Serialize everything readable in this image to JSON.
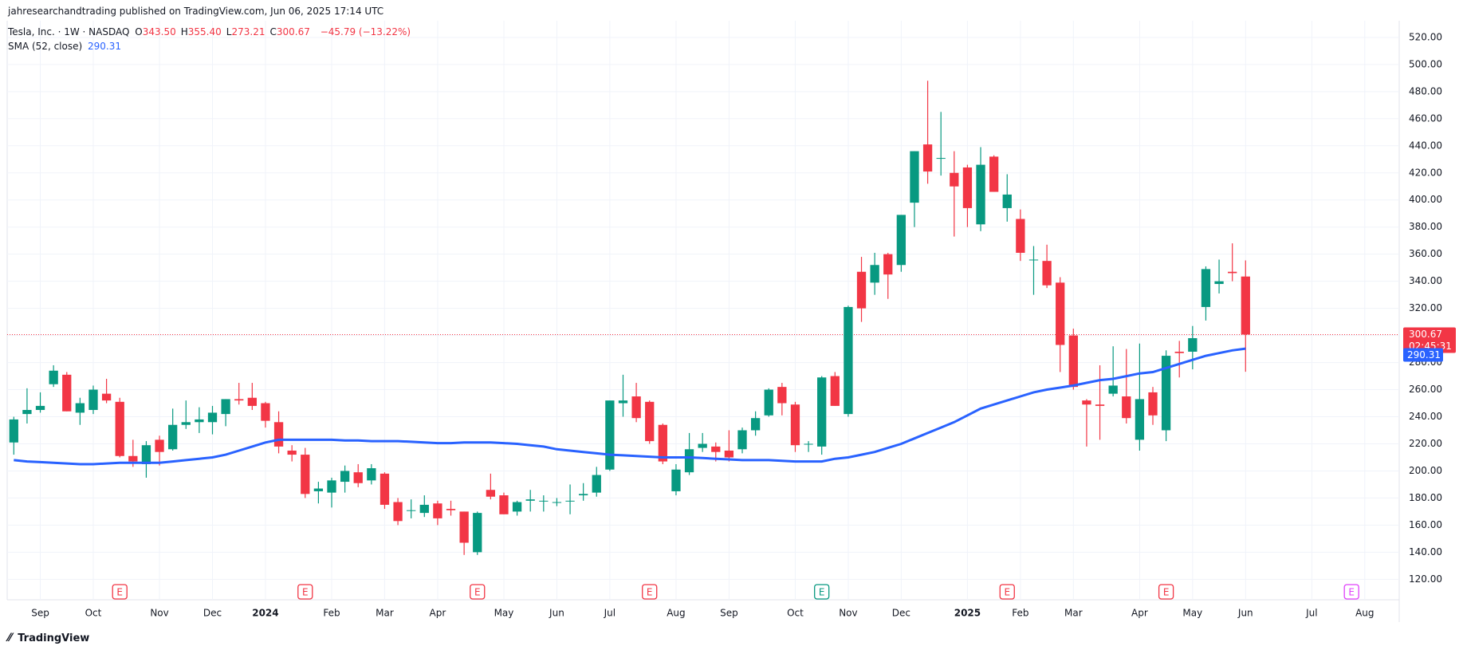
{
  "header": {
    "published": "jahresearchandtrading published on TradingView.com, Jun 06, 2025 17:14 UTC",
    "symbol": "Tesla, Inc. · 1W · NASDAQ",
    "ohlc": [
      {
        "key": "O",
        "value": "343.50"
      },
      {
        "key": "H",
        "value": "355.40"
      },
      {
        "key": "L",
        "value": "273.21"
      },
      {
        "key": "C",
        "value": "300.67"
      }
    ],
    "change": "−45.79 (−13.22%)"
  },
  "footer": "TradingView",
  "chart_data": {
    "type": "candlestick",
    "open": [
      221,
      242,
      245,
      264,
      271,
      243,
      245,
      257,
      251,
      211,
      205,
      223,
      216,
      234,
      236,
      236,
      242,
      253,
      254,
      250,
      236,
      215,
      212,
      185,
      184,
      192,
      199,
      193,
      198,
      177,
      171,
      169,
      176,
      172,
      170,
      140,
      186,
      182,
      170,
      178,
      178,
      177,
      178,
      182,
      184,
      201,
      250,
      255,
      251,
      234,
      185,
      199,
      217,
      218,
      215,
      216,
      230,
      241,
      262,
      249,
      220,
      218,
      270,
      242,
      347,
      339,
      360,
      352,
      398,
      441,
      431,
      420,
      424,
      382,
      432,
      394,
      386,
      356,
      355,
      339,
      300,
      252,
      249,
      257,
      255,
      223,
      258,
      230,
      288,
      288,
      321,
      338,
      347,
      343.5
    ],
    "high": [
      240,
      261,
      258,
      278,
      273,
      254,
      263,
      268,
      254,
      223,
      222,
      226,
      246,
      252,
      247,
      248,
      253,
      265,
      265,
      251,
      244,
      219,
      217,
      192,
      195,
      204,
      205,
      205,
      199,
      180,
      179,
      182,
      178,
      178,
      170,
      170,
      198,
      184,
      178,
      186,
      182,
      180,
      190,
      191,
      203,
      252,
      271,
      265,
      252,
      235,
      205,
      228,
      228,
      221,
      230,
      232,
      244,
      261,
      265,
      251,
      222,
      270,
      273,
      322,
      358,
      361,
      361,
      389,
      436,
      488,
      465,
      436,
      426,
      439,
      433,
      419,
      393,
      366,
      367,
      343,
      305,
      253,
      278,
      292,
      290,
      294,
      262,
      289,
      296,
      307,
      351,
      356,
      368,
      355.4
    ],
    "low": [
      212,
      235,
      243,
      262,
      244,
      234,
      242,
      250,
      210,
      203,
      195,
      204,
      215,
      231,
      228,
      227,
      233,
      249,
      245,
      232,
      213,
      207,
      180,
      176,
      173,
      184,
      188,
      190,
      172,
      160,
      165,
      166,
      160,
      167,
      138,
      138,
      179,
      168,
      167,
      170,
      170,
      174,
      168,
      178,
      181,
      200,
      240,
      236,
      220,
      205,
      182,
      197,
      214,
      207,
      207,
      213,
      226,
      240,
      241,
      214,
      214,
      212,
      248,
      240,
      310,
      330,
      327,
      347,
      380,
      412,
      418,
      373,
      380,
      377,
      406,
      384,
      355,
      330,
      335,
      273,
      260,
      218,
      223,
      255,
      235,
      215,
      234,
      222,
      269,
      275,
      311,
      331,
      340,
      273.21
    ],
    "close": [
      238,
      245,
      248,
      274,
      244,
      250,
      260,
      252,
      211,
      207,
      219,
      214,
      234,
      236,
      238,
      243,
      253,
      252,
      248,
      237,
      218,
      212,
      183,
      187,
      193,
      200,
      191,
      202,
      175,
      163,
      171,
      175,
      165,
      171,
      147,
      169,
      181,
      168,
      177,
      179,
      178,
      177,
      178,
      183,
      197,
      252,
      252,
      239,
      222,
      207,
      201,
      216,
      220,
      214,
      210,
      230,
      239,
      260,
      250,
      219,
      220,
      269,
      248,
      321,
      320,
      352,
      345,
      389,
      436,
      421,
      431,
      410,
      394,
      426,
      406,
      404,
      361,
      356,
      337,
      293,
      262,
      249,
      248,
      263,
      239,
      253,
      241,
      285,
      287,
      298,
      349,
      340,
      346,
      300.67
    ],
    "up_color": "#089981",
    "down_color": "#f23645",
    "sma": {
      "name": "SMA (52, close)",
      "color": "#2962ff",
      "values": [
        208,
        207,
        206.5,
        206,
        205.5,
        205,
        205,
        205.5,
        206,
        206,
        206,
        206,
        207,
        208,
        209,
        210,
        212,
        215,
        218,
        221,
        223,
        223,
        223,
        223,
        223,
        222.5,
        222.5,
        222,
        222,
        222,
        221.5,
        221,
        220.5,
        220.5,
        221,
        221,
        221,
        220.5,
        220,
        219,
        218,
        216,
        215,
        214,
        213,
        212,
        211.5,
        211,
        210.5,
        210,
        210,
        210,
        209.5,
        209,
        208.5,
        208,
        208,
        208,
        207.5,
        207,
        207,
        207,
        209,
        210,
        212,
        214,
        217,
        220,
        224,
        228,
        232,
        236,
        241,
        246,
        249,
        252,
        255,
        258,
        260,
        261.5,
        263,
        265,
        267,
        268,
        270,
        272,
        273,
        276,
        279,
        282,
        285,
        287,
        289,
        290.31
      ]
    },
    "last_price_label": {
      "value": 300.67,
      "label": "300.67"
    },
    "countdown": "02:45:31",
    "sma_label": {
      "value": 290.31,
      "label": "290.31"
    },
    "xlim": [
      -0.5,
      104.6
    ],
    "xticks": [
      {
        "value": 2,
        "label": "Sep"
      },
      {
        "value": 6,
        "label": "Oct"
      },
      {
        "value": 11,
        "label": "Nov"
      },
      {
        "value": 15,
        "label": "Dec"
      },
      {
        "value": 19,
        "label": "2024",
        "bold": true
      },
      {
        "value": 24,
        "label": "Feb"
      },
      {
        "value": 28,
        "label": "Mar"
      },
      {
        "value": 32,
        "label": "Apr"
      },
      {
        "value": 37,
        "label": "May"
      },
      {
        "value": 41,
        "label": "Jun"
      },
      {
        "value": 45,
        "label": "Jul"
      },
      {
        "value": 50,
        "label": "Aug"
      },
      {
        "value": 54,
        "label": "Sep"
      },
      {
        "value": 59,
        "label": "Oct"
      },
      {
        "value": 63,
        "label": "Nov"
      },
      {
        "value": 67,
        "label": "Dec"
      },
      {
        "value": 72,
        "label": "2025",
        "bold": true
      },
      {
        "value": 76,
        "label": "Feb"
      },
      {
        "value": 80,
        "label": "Mar"
      },
      {
        "value": 85,
        "label": "Apr"
      },
      {
        "value": 89,
        "label": "May"
      },
      {
        "value": 93,
        "label": "Jun"
      },
      {
        "value": 98,
        "label": "Jul"
      },
      {
        "value": 102,
        "label": "Aug"
      }
    ],
    "ylim": [
      104.9,
      532.3
    ],
    "yticks": [
      {
        "value": 120,
        "label": "120.00"
      },
      {
        "value": 140,
        "label": "140.00"
      },
      {
        "value": 160,
        "label": "160.00"
      },
      {
        "value": 180,
        "label": "180.00"
      },
      {
        "value": 200,
        "label": "200.00"
      },
      {
        "value": 220,
        "label": "220.00"
      },
      {
        "value": 240,
        "label": "240.00"
      },
      {
        "value": 260,
        "label": "260.00"
      },
      {
        "value": 280,
        "label": "280.00"
      },
      {
        "value": 300,
        "label": "300.00"
      },
      {
        "value": 320,
        "label": "320.00"
      },
      {
        "value": 340,
        "label": "340.00"
      },
      {
        "value": 360,
        "label": "360.00"
      },
      {
        "value": 380,
        "label": "380.00"
      },
      {
        "value": 400,
        "label": "400.00"
      },
      {
        "value": 420,
        "label": "420.00"
      },
      {
        "value": 440,
        "label": "440.00"
      },
      {
        "value": 460,
        "label": "460.00"
      },
      {
        "value": 480,
        "label": "480.00"
      },
      {
        "value": 500,
        "label": "500.00"
      },
      {
        "value": 520,
        "label": "520.00"
      }
    ],
    "grid": true,
    "events": [
      {
        "x": 8,
        "label": "E",
        "color": "#f23645"
      },
      {
        "x": 22,
        "label": "E",
        "color": "#f23645"
      },
      {
        "x": 35,
        "label": "E",
        "color": "#f23645"
      },
      {
        "x": 48,
        "label": "E",
        "color": "#f23645"
      },
      {
        "x": 61,
        "label": "E",
        "color": "#089981"
      },
      {
        "x": 75,
        "label": "E",
        "color": "#f23645"
      },
      {
        "x": 87,
        "label": "E",
        "color": "#f23645"
      },
      {
        "x": 101,
        "label": "E",
        "color": "#e040fb"
      }
    ]
  }
}
